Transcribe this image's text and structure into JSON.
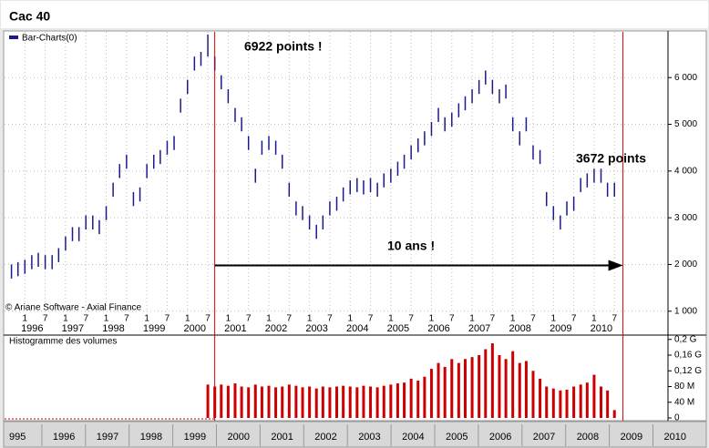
{
  "chart_data": [
    {
      "type": "ohlc",
      "title": "Cac 40",
      "source": "© Ariane Software - Axial Finance",
      "x": [
        1995.67,
        1995.83,
        1996,
        1996.17,
        1996.33,
        1996.5,
        1996.67,
        1996.83,
        1997,
        1997.17,
        1997.33,
        1997.5,
        1997.67,
        1997.83,
        1998,
        1998.17,
        1998.33,
        1998.5,
        1998.67,
        1998.83,
        1999,
        1999.17,
        1999.33,
        1999.5,
        1999.67,
        1999.83,
        2000,
        2000.17,
        2000.33,
        2000.5,
        2000.67,
        2000.83,
        2001,
        2001.17,
        2001.33,
        2001.5,
        2001.67,
        2001.83,
        2002,
        2002.17,
        2002.33,
        2002.5,
        2002.67,
        2002.83,
        2003,
        2003.17,
        2003.33,
        2003.5,
        2003.67,
        2003.83,
        2004,
        2004.17,
        2004.33,
        2004.5,
        2004.67,
        2004.83,
        2005,
        2005.17,
        2005.33,
        2005.5,
        2005.67,
        2005.83,
        2006,
        2006.17,
        2006.33,
        2006.5,
        2006.67,
        2006.83,
        2007,
        2007.17,
        2007.33,
        2007.5,
        2007.67,
        2007.83,
        2008,
        2008.17,
        2008.33,
        2008.5,
        2008.67,
        2008.83,
        2009,
        2009.17,
        2009.33,
        2009.5,
        2009.67,
        2009.83,
        2010,
        2010.17,
        2010.33,
        2010.5
      ],
      "series": [
        {
          "name": "Bar-Charts(0)",
          "color": "#1a1a8c",
          "high": [
            2000,
            2050,
            2100,
            2200,
            2250,
            2200,
            2200,
            2350,
            2600,
            2800,
            2800,
            3050,
            3050,
            2950,
            3250,
            3750,
            4150,
            4350,
            3550,
            3650,
            4150,
            4350,
            4450,
            4650,
            4750,
            5550,
            5950,
            6450,
            6550,
            6922,
            6450,
            6050,
            5750,
            5350,
            5150,
            4750,
            4050,
            4650,
            4750,
            4650,
            4350,
            3750,
            3350,
            3250,
            3050,
            2850,
            3050,
            3350,
            3450,
            3650,
            3800,
            3850,
            3800,
            3850,
            3750,
            3950,
            4050,
            4200,
            4350,
            4550,
            4700,
            4850,
            5050,
            5350,
            5150,
            5250,
            5450,
            5600,
            5750,
            5950,
            6150,
            5950,
            5750,
            5850,
            5150,
            4850,
            5150,
            4550,
            4450,
            3550,
            3250,
            3050,
            3350,
            3450,
            3850,
            3950,
            4050,
            4050,
            3750,
            3750
          ],
          "low": [
            1700,
            1750,
            1800,
            1900,
            1950,
            1900,
            1900,
            2050,
            2300,
            2500,
            2500,
            2750,
            2750,
            2650,
            2950,
            3450,
            3850,
            4050,
            3250,
            3350,
            3850,
            4050,
            4150,
            4350,
            4450,
            5250,
            5650,
            6150,
            6250,
            6450,
            6150,
            5750,
            5450,
            5050,
            4850,
            4450,
            3750,
            4350,
            4450,
            4350,
            4050,
            3450,
            3050,
            2950,
            2750,
            2550,
            2750,
            3050,
            3150,
            3350,
            3500,
            3550,
            3500,
            3550,
            3450,
            3650,
            3750,
            3900,
            4050,
            4250,
            4400,
            4550,
            4750,
            5050,
            4850,
            4950,
            5150,
            5300,
            5450,
            5650,
            5850,
            5650,
            5450,
            5550,
            4850,
            4550,
            4850,
            4250,
            4150,
            3250,
            2950,
            2750,
            3050,
            3150,
            3550,
            3650,
            3750,
            3750,
            3450,
            3450
          ]
        }
      ],
      "xlim": [
        1995.5,
        2011.75
      ],
      "ylim": [
        840,
        6920
      ],
      "yticks": [
        {
          "value": 1000,
          "label": "1 000"
        },
        {
          "value": 2000,
          "label": "2 000"
        },
        {
          "value": 3000,
          "label": "3 000"
        },
        {
          "value": 4000,
          "label": "4 000"
        },
        {
          "value": 5000,
          "label": "5 000"
        },
        {
          "value": 6000,
          "label": "6 000"
        }
      ],
      "xticks": [
        {
          "value": 1996,
          "label": "1"
        },
        {
          "value": 1996.5,
          "label": "7"
        },
        {
          "value": 1997,
          "label": "1"
        },
        {
          "value": 1997.5,
          "label": "7"
        },
        {
          "value": 1998,
          "label": "1"
        },
        {
          "value": 1998.5,
          "label": "7"
        },
        {
          "value": 1999,
          "label": "1"
        },
        {
          "value": 1999.5,
          "label": "7"
        },
        {
          "value": 2000,
          "label": "1"
        },
        {
          "value": 2000.5,
          "label": "7"
        },
        {
          "value": 2001,
          "label": "1"
        },
        {
          "value": 2001.5,
          "label": "7"
        },
        {
          "value": 2002,
          "label": "1"
        },
        {
          "value": 2002.5,
          "label": "7"
        },
        {
          "value": 2003,
          "label": "1"
        },
        {
          "value": 2003.5,
          "label": "7"
        },
        {
          "value": 2004,
          "label": "1"
        },
        {
          "value": 2004.5,
          "label": "7"
        },
        {
          "value": 2005,
          "label": "1"
        },
        {
          "value": 2005.5,
          "label": "7"
        },
        {
          "value": 2006,
          "label": "1"
        },
        {
          "value": 2006.5,
          "label": "7"
        },
        {
          "value": 2007,
          "label": "1"
        },
        {
          "value": 2007.5,
          "label": "7"
        },
        {
          "value": 2008,
          "label": "1"
        },
        {
          "value": 2008.5,
          "label": "7"
        },
        {
          "value": 2009,
          "label": "1"
        },
        {
          "value": 2009.5,
          "label": "7"
        },
        {
          "value": 2010,
          "label": "1"
        },
        {
          "value": 2010.5,
          "label": "7"
        }
      ],
      "year_labels": [
        {
          "value": 1996,
          "label": "1996"
        },
        {
          "value": 1997,
          "label": "1997"
        },
        {
          "value": 1998,
          "label": "1998"
        },
        {
          "value": 1999,
          "label": "1999"
        },
        {
          "value": 2000,
          "label": "2000"
        },
        {
          "value": 2001,
          "label": "2001"
        },
        {
          "value": 2002,
          "label": "2002"
        },
        {
          "value": 2003,
          "label": "2003"
        },
        {
          "value": 2004,
          "label": "2004"
        },
        {
          "value": 2005,
          "label": "2005"
        },
        {
          "value": 2006,
          "label": "2006"
        },
        {
          "value": 2007,
          "label": "2007"
        },
        {
          "value": 2008,
          "label": "2008"
        },
        {
          "value": 2009,
          "label": "2009"
        },
        {
          "value": 2010,
          "label": "2010"
        }
      ],
      "grid": true,
      "vlines": [
        2000.67,
        2010.71
      ],
      "vline_color": "#cc0000",
      "arrow": {
        "x": [
          2000.67,
          2010.71
        ],
        "y": [
          1980,
          1980
        ]
      },
      "annotations": [
        "6922 points !",
        "3672 points",
        "10 ans !"
      ]
    },
    {
      "type": "bar",
      "title": "Histogramme des volumes",
      "color": "#cc0000",
      "values": [
        null,
        null,
        null,
        null,
        null,
        null,
        null,
        null,
        null,
        null,
        null,
        null,
        null,
        null,
        null,
        null,
        null,
        null,
        null,
        null,
        null,
        null,
        null,
        null,
        null,
        null,
        null,
        null,
        null,
        85,
        80,
        85,
        82,
        88,
        80,
        78,
        85,
        80,
        82,
        78,
        80,
        85,
        82,
        78,
        80,
        75,
        80,
        78,
        80,
        82,
        80,
        78,
        82,
        80,
        78,
        82,
        85,
        88,
        90,
        100,
        95,
        105,
        125,
        140,
        130,
        150,
        140,
        150,
        155,
        160,
        175,
        190,
        160,
        150,
        170,
        140,
        145,
        120,
        100,
        80,
        75,
        70,
        72,
        80,
        85,
        90,
        110,
        80,
        70,
        20
      ],
      "ylim": [
        0,
        211
      ],
      "yticks": [
        0,
        {
          "value": 40,
          "label": "40 M"
        },
        {
          "value": 80,
          "label": "80 M"
        },
        {
          "value": 120,
          "label": "0,12 G"
        },
        {
          "value": 160,
          "label": "0,16 G"
        },
        {
          "value": 200,
          "label": "0,2 G"
        }
      ]
    }
  ],
  "navigator": [
    "995",
    "1996",
    "1997",
    "1998",
    "1999",
    "2000",
    "2001",
    "2002",
    "2003",
    "2004",
    "2005",
    "2006",
    "2007",
    "2008",
    "2009",
    "2010"
  ]
}
